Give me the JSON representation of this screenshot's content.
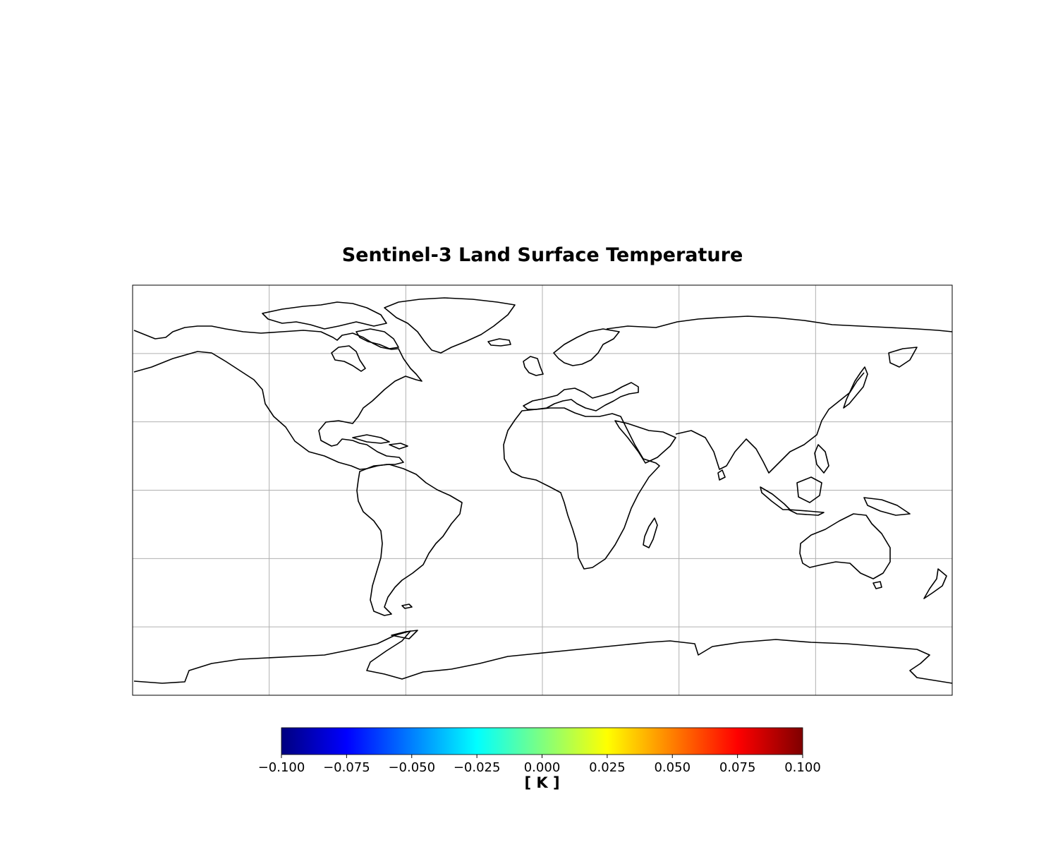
{
  "title": "Sentinel-3 Land Surface Temperature",
  "map": {
    "projection": "equirectangular (PlateCarree)",
    "extent_lon": [
      -180,
      180
    ],
    "extent_lat": [
      -90,
      90
    ],
    "gridlines_lon": [
      -120,
      -60,
      0,
      60,
      120
    ],
    "gridlines_lat": [
      -60,
      -30,
      0,
      30,
      60
    ],
    "coastline_color": "#000000",
    "grid_color": "#b0b0b0",
    "data_fill": "none (all values masked)"
  },
  "colorbar": {
    "colormap": "jet",
    "orientation": "horizontal",
    "range": [
      -0.1,
      0.1
    ],
    "ticks": [
      "−0.100",
      "−0.075",
      "−0.050",
      "−0.025",
      "0.000",
      "0.025",
      "0.050",
      "0.075",
      "0.100"
    ],
    "label": "[ K ]",
    "colors": [
      "#00007f",
      "#0000ff",
      "#007fff",
      "#00ffff",
      "#7fff7f",
      "#ffff00",
      "#ff7f00",
      "#ff0000",
      "#7f0000"
    ]
  }
}
